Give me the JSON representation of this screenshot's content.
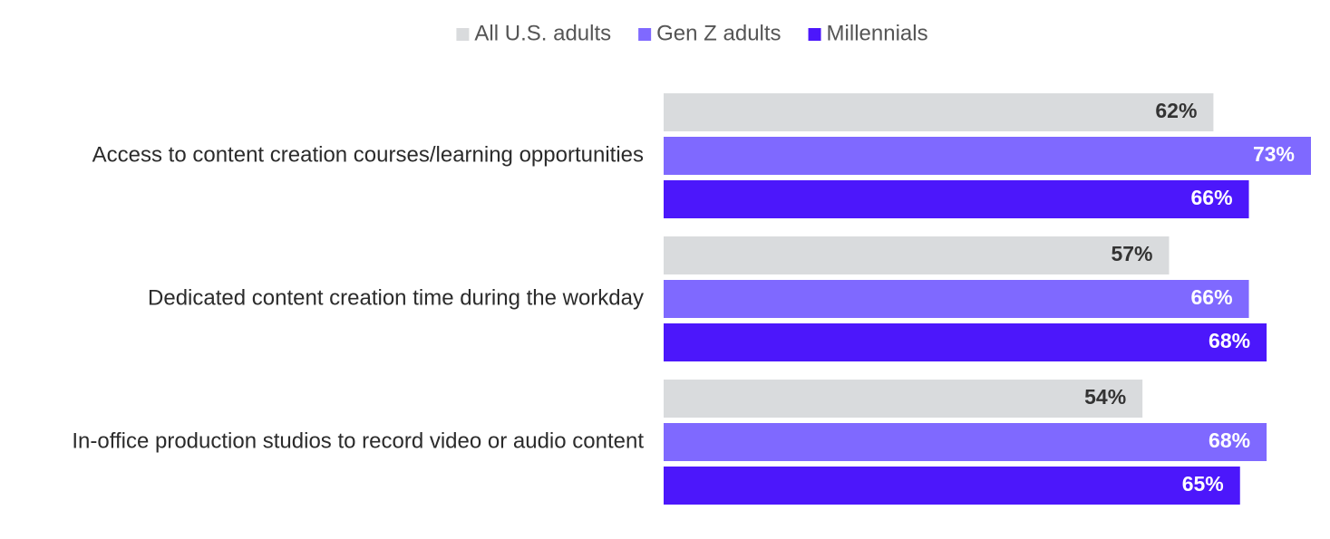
{
  "chart_data": {
    "type": "bar",
    "orientation": "horizontal",
    "title": "",
    "xlabel": "",
    "ylabel": "",
    "xlim": [
      0,
      100
    ],
    "grid": false,
    "legend_position": "top-center",
    "value_suffix": "%",
    "categories": [
      "Access to content creation courses/learning opportunities",
      "Dedicated content creation time during the workday",
      "In-office production studios to record video or audio content"
    ],
    "series": [
      {
        "name": "All U.S. adults",
        "color": "#d9dbdd",
        "label_color": "#333333",
        "values": [
          62,
          57,
          54
        ]
      },
      {
        "name": "Gen Z adults",
        "color": "#7f69ff",
        "label_color": "#ffffff",
        "values": [
          73,
          66,
          68
        ]
      },
      {
        "name": "Millennials",
        "color": "#4c17fb",
        "label_color": "#ffffff",
        "values": [
          66,
          68,
          65
        ]
      }
    ]
  }
}
